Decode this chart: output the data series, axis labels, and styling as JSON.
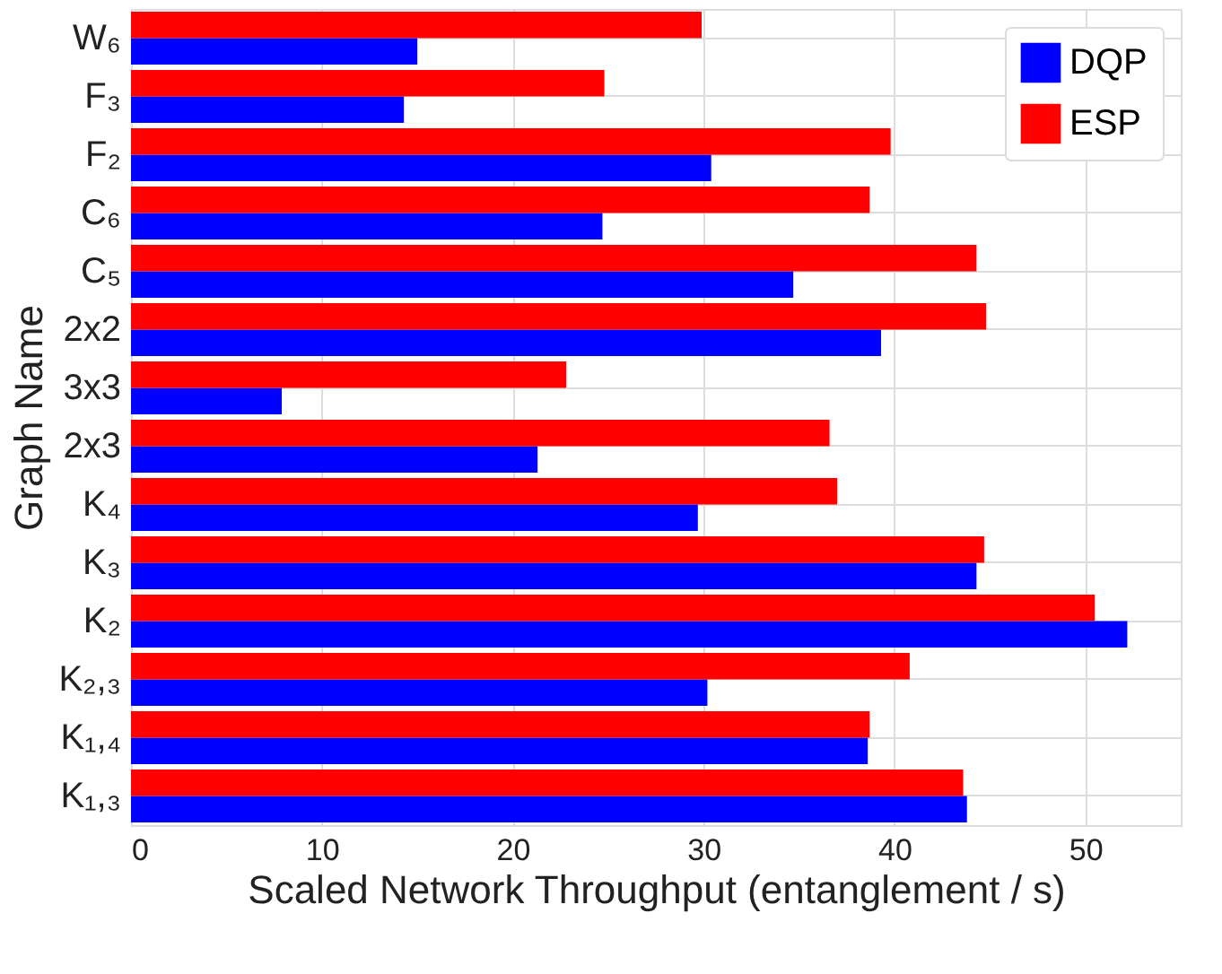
{
  "chart_data": {
    "type": "bar",
    "orientation": "horizontal",
    "xlabel": "Scaled Network Throughput (entanglement / s)",
    "ylabel": "Graph Name",
    "categories": [
      "W₆",
      "F₃",
      "F₂",
      "C₆",
      "C₅",
      "2x2",
      "3x3",
      "2x3",
      "K₄",
      "K₃",
      "K₂",
      "K₂,₃",
      "K₁,₄",
      "K₁,₃"
    ],
    "series": [
      {
        "name": "DQP",
        "color": "#0000ff",
        "values": [
          15.0,
          14.3,
          30.4,
          24.7,
          34.7,
          39.3,
          7.9,
          21.3,
          29.7,
          44.3,
          52.2,
          30.2,
          38.6,
          43.8
        ]
      },
      {
        "name": "ESP",
        "color": "#ff0000",
        "values": [
          29.9,
          24.8,
          39.8,
          38.7,
          44.3,
          44.8,
          22.8,
          36.6,
          37.0,
          44.7,
          50.5,
          40.8,
          38.7,
          43.6
        ]
      }
    ],
    "xlim": [
      0,
      55
    ],
    "xticks": [
      0,
      10,
      20,
      30,
      40,
      50
    ],
    "grid": true,
    "legend": "top right"
  }
}
